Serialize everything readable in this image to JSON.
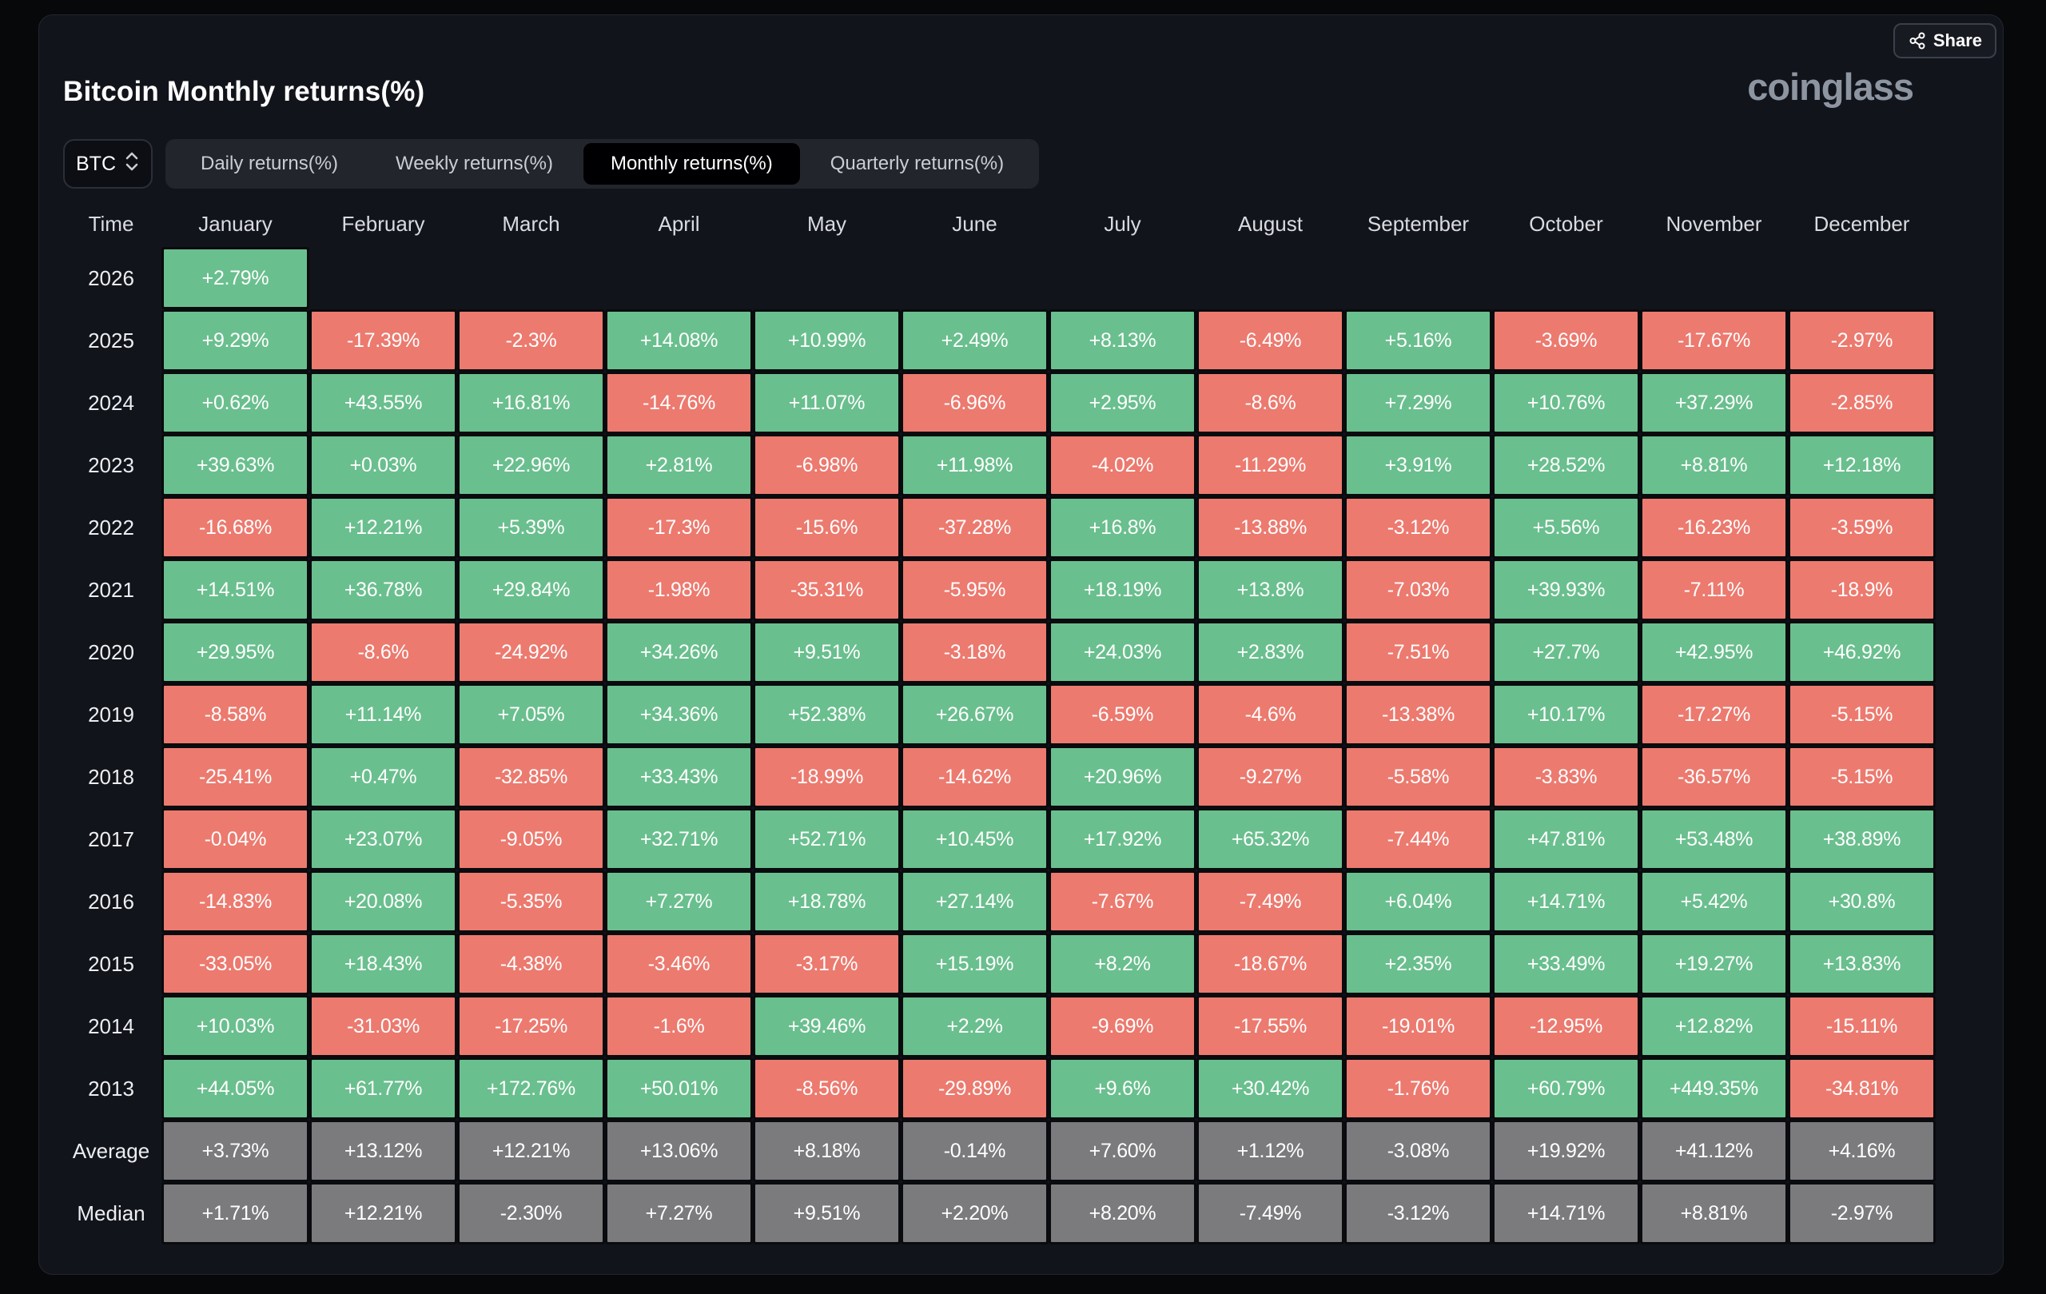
{
  "header": {
    "share_label": "Share",
    "logo": "coinglass"
  },
  "controls": {
    "symbol": "BTC",
    "tabs": [
      {
        "label": "Daily returns(%)",
        "active": false
      },
      {
        "label": "Weekly returns(%)",
        "active": false
      },
      {
        "label": "Monthly returns(%)",
        "active": true
      },
      {
        "label": "Quarterly returns(%)",
        "active": false
      }
    ]
  },
  "colors": {
    "positive": "#6abf8e",
    "negative": "#ec7a6f",
    "summary": "#7b7b7d",
    "panel_background": "#12141b",
    "page_background": "#07080a"
  },
  "chart_data": {
    "type": "table",
    "title": "Bitcoin Monthly returns(%)",
    "time_header": "Time",
    "columns": [
      "January",
      "February",
      "March",
      "April",
      "May",
      "June",
      "July",
      "August",
      "September",
      "October",
      "November",
      "December"
    ],
    "current_cell": {
      "row": "2026",
      "column": "January"
    },
    "rows": [
      {
        "label": "2026",
        "type": "year",
        "values": [
          "+2.79%",
          "",
          "",
          "",
          "",
          "",
          "",
          "",
          "",
          "",
          "",
          ""
        ]
      },
      {
        "label": "2025",
        "type": "year",
        "values": [
          "+9.29%",
          "-17.39%",
          "-2.3%",
          "+14.08%",
          "+10.99%",
          "+2.49%",
          "+8.13%",
          "-6.49%",
          "+5.16%",
          "-3.69%",
          "-17.67%",
          "-2.97%"
        ]
      },
      {
        "label": "2024",
        "type": "year",
        "values": [
          "+0.62%",
          "+43.55%",
          "+16.81%",
          "-14.76%",
          "+11.07%",
          "-6.96%",
          "+2.95%",
          "-8.6%",
          "+7.29%",
          "+10.76%",
          "+37.29%",
          "-2.85%"
        ]
      },
      {
        "label": "2023",
        "type": "year",
        "values": [
          "+39.63%",
          "+0.03%",
          "+22.96%",
          "+2.81%",
          "-6.98%",
          "+11.98%",
          "-4.02%",
          "-11.29%",
          "+3.91%",
          "+28.52%",
          "+8.81%",
          "+12.18%"
        ]
      },
      {
        "label": "2022",
        "type": "year",
        "values": [
          "-16.68%",
          "+12.21%",
          "+5.39%",
          "-17.3%",
          "-15.6%",
          "-37.28%",
          "+16.8%",
          "-13.88%",
          "-3.12%",
          "+5.56%",
          "-16.23%",
          "-3.59%"
        ]
      },
      {
        "label": "2021",
        "type": "year",
        "values": [
          "+14.51%",
          "+36.78%",
          "+29.84%",
          "-1.98%",
          "-35.31%",
          "-5.95%",
          "+18.19%",
          "+13.8%",
          "-7.03%",
          "+39.93%",
          "-7.11%",
          "-18.9%"
        ]
      },
      {
        "label": "2020",
        "type": "year",
        "values": [
          "+29.95%",
          "-8.6%",
          "-24.92%",
          "+34.26%",
          "+9.51%",
          "-3.18%",
          "+24.03%",
          "+2.83%",
          "-7.51%",
          "+27.7%",
          "+42.95%",
          "+46.92%"
        ]
      },
      {
        "label": "2019",
        "type": "year",
        "values": [
          "-8.58%",
          "+11.14%",
          "+7.05%",
          "+34.36%",
          "+52.38%",
          "+26.67%",
          "-6.59%",
          "-4.6%",
          "-13.38%",
          "+10.17%",
          "-17.27%",
          "-5.15%"
        ]
      },
      {
        "label": "2018",
        "type": "year",
        "values": [
          "-25.41%",
          "+0.47%",
          "-32.85%",
          "+33.43%",
          "-18.99%",
          "-14.62%",
          "+20.96%",
          "-9.27%",
          "-5.58%",
          "-3.83%",
          "-36.57%",
          "-5.15%"
        ]
      },
      {
        "label": "2017",
        "type": "year",
        "values": [
          "-0.04%",
          "+23.07%",
          "-9.05%",
          "+32.71%",
          "+52.71%",
          "+10.45%",
          "+17.92%",
          "+65.32%",
          "-7.44%",
          "+47.81%",
          "+53.48%",
          "+38.89%"
        ]
      },
      {
        "label": "2016",
        "type": "year",
        "values": [
          "-14.83%",
          "+20.08%",
          "-5.35%",
          "+7.27%",
          "+18.78%",
          "+27.14%",
          "-7.67%",
          "-7.49%",
          "+6.04%",
          "+14.71%",
          "+5.42%",
          "+30.8%"
        ]
      },
      {
        "label": "2015",
        "type": "year",
        "values": [
          "-33.05%",
          "+18.43%",
          "-4.38%",
          "-3.46%",
          "-3.17%",
          "+15.19%",
          "+8.2%",
          "-18.67%",
          "+2.35%",
          "+33.49%",
          "+19.27%",
          "+13.83%"
        ]
      },
      {
        "label": "2014",
        "type": "year",
        "values": [
          "+10.03%",
          "-31.03%",
          "-17.25%",
          "-1.6%",
          "+39.46%",
          "+2.2%",
          "-9.69%",
          "-17.55%",
          "-19.01%",
          "-12.95%",
          "+12.82%",
          "-15.11%"
        ]
      },
      {
        "label": "2013",
        "type": "year",
        "values": [
          "+44.05%",
          "+61.77%",
          "+172.76%",
          "+50.01%",
          "-8.56%",
          "-29.89%",
          "+9.6%",
          "+30.42%",
          "-1.76%",
          "+60.79%",
          "+449.35%",
          "-34.81%"
        ]
      },
      {
        "label": "Average",
        "type": "summary",
        "values": [
          "+3.73%",
          "+13.12%",
          "+12.21%",
          "+13.06%",
          "+8.18%",
          "-0.14%",
          "+7.60%",
          "+1.12%",
          "-3.08%",
          "+19.92%",
          "+41.12%",
          "+4.16%"
        ]
      },
      {
        "label": "Median",
        "type": "summary",
        "values": [
          "+1.71%",
          "+12.21%",
          "-2.30%",
          "+7.27%",
          "+9.51%",
          "+2.20%",
          "+8.20%",
          "-7.49%",
          "-3.12%",
          "+14.71%",
          "+8.81%",
          "-2.97%"
        ]
      }
    ]
  }
}
